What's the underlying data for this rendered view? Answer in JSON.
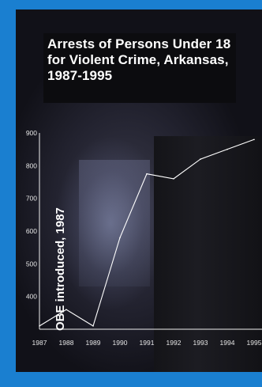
{
  "chart_data": {
    "type": "line",
    "title": "Arrests of Persons Under 18 for Violent Crime, Arkansas, 1987-1995",
    "xlabel": "",
    "ylabel": "",
    "x": [
      1987,
      1988,
      1989,
      1990,
      1991,
      1992,
      1993,
      1994,
      1995
    ],
    "series": [
      {
        "values": [
          310,
          360,
          310,
          580,
          775,
          760,
          820,
          850,
          880
        ]
      }
    ],
    "x_tick_labels": [
      "1987",
      "1988",
      "1989",
      "1990",
      "1991",
      "1992",
      "1993",
      "1994",
      "1995"
    ],
    "y_ticks": [
      400,
      500,
      600,
      700,
      800,
      900
    ],
    "xlim": [
      1987,
      1995
    ],
    "ylim": [
      300,
      900
    ],
    "grid": false,
    "annotation": "OBE introduced, 1987",
    "colors": {
      "line": "#ffffff",
      "background": "#1a1a22",
      "frame": "#1a7fd0",
      "title_box": "#0c0c0f"
    }
  }
}
